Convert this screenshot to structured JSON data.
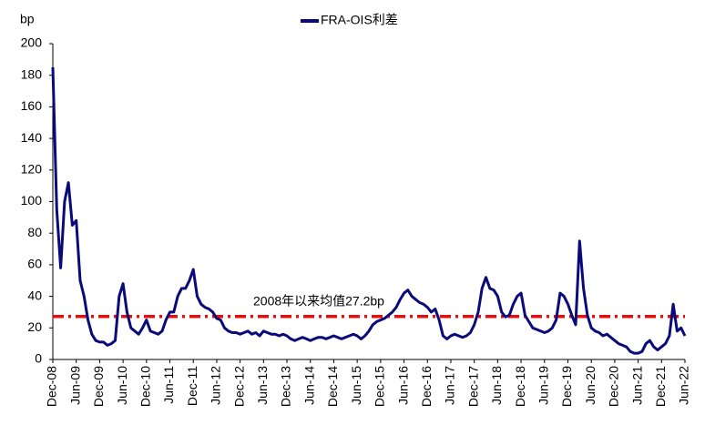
{
  "chart_data": {
    "type": "line",
    "legend": "top",
    "ylabel": "bp",
    "ylim": [
      0,
      200
    ],
    "yticks": [
      0,
      20,
      40,
      60,
      80,
      100,
      120,
      140,
      160,
      180,
      200
    ],
    "xlim": [
      "2008-12",
      "2022-06"
    ],
    "xticks": [
      {
        "value": "2008-12",
        "label": "Dec-08"
      },
      {
        "value": "2009-06",
        "label": "Jun-09"
      },
      {
        "value": "2009-12",
        "label": "Dec-09"
      },
      {
        "value": "2010-06",
        "label": "Jun-10"
      },
      {
        "value": "2010-12",
        "label": "Dec-10"
      },
      {
        "value": "2011-06",
        "label": "Jun-11"
      },
      {
        "value": "2011-12",
        "label": "Dec-11"
      },
      {
        "value": "2012-06",
        "label": "Jun-12"
      },
      {
        "value": "2012-12",
        "label": "Dec-12"
      },
      {
        "value": "2013-06",
        "label": "Jun-13"
      },
      {
        "value": "2013-12",
        "label": "Dec-13"
      },
      {
        "value": "2014-06",
        "label": "Jun-14"
      },
      {
        "value": "2014-12",
        "label": "Dec-14"
      },
      {
        "value": "2015-06",
        "label": "Jun-15"
      },
      {
        "value": "2015-12",
        "label": "Dec-15"
      },
      {
        "value": "2016-06",
        "label": "Jun-16"
      },
      {
        "value": "2016-12",
        "label": "Dec-16"
      },
      {
        "value": "2017-06",
        "label": "Jun-17"
      },
      {
        "value": "2017-12",
        "label": "Dec-17"
      },
      {
        "value": "2018-06",
        "label": "Jun-18"
      },
      {
        "value": "2018-12",
        "label": "Dec-18"
      },
      {
        "value": "2019-06",
        "label": "Jun-19"
      },
      {
        "value": "2019-12",
        "label": "Dec-19"
      },
      {
        "value": "2020-06",
        "label": "Jun-20"
      },
      {
        "value": "2020-12",
        "label": "Dec-20"
      },
      {
        "value": "2021-06",
        "label": "Jun-21"
      },
      {
        "value": "2021-12",
        "label": "Dec-21"
      },
      {
        "value": "2022-06",
        "label": "Jun-22"
      }
    ],
    "x": [
      "2008-12",
      "2009-01",
      "2009-02",
      "2009-03",
      "2009-04",
      "2009-05",
      "2009-06",
      "2009-07",
      "2009-08",
      "2009-09",
      "2009-10",
      "2009-11",
      "2009-12",
      "2010-01",
      "2010-02",
      "2010-03",
      "2010-04",
      "2010-05",
      "2010-06",
      "2010-07",
      "2010-08",
      "2010-09",
      "2010-10",
      "2010-11",
      "2010-12",
      "2011-01",
      "2011-02",
      "2011-03",
      "2011-04",
      "2011-05",
      "2011-06",
      "2011-07",
      "2011-08",
      "2011-09",
      "2011-10",
      "2011-11",
      "2011-12",
      "2012-01",
      "2012-02",
      "2012-03",
      "2012-04",
      "2012-05",
      "2012-06",
      "2012-07",
      "2012-08",
      "2012-09",
      "2012-10",
      "2012-11",
      "2012-12",
      "2013-01",
      "2013-02",
      "2013-03",
      "2013-04",
      "2013-05",
      "2013-06",
      "2013-07",
      "2013-08",
      "2013-09",
      "2013-10",
      "2013-11",
      "2013-12",
      "2014-01",
      "2014-02",
      "2014-03",
      "2014-04",
      "2014-05",
      "2014-06",
      "2014-07",
      "2014-08",
      "2014-09",
      "2014-10",
      "2014-11",
      "2014-12",
      "2015-01",
      "2015-02",
      "2015-03",
      "2015-04",
      "2015-05",
      "2015-06",
      "2015-07",
      "2015-08",
      "2015-09",
      "2015-10",
      "2015-11",
      "2015-12",
      "2016-01",
      "2016-02",
      "2016-03",
      "2016-04",
      "2016-05",
      "2016-06",
      "2016-07",
      "2016-08",
      "2016-09",
      "2016-10",
      "2016-11",
      "2016-12",
      "2017-01",
      "2017-02",
      "2017-03",
      "2017-04",
      "2017-05",
      "2017-06",
      "2017-07",
      "2017-08",
      "2017-09",
      "2017-10",
      "2017-11",
      "2017-12",
      "2018-01",
      "2018-02",
      "2018-03",
      "2018-04",
      "2018-05",
      "2018-06",
      "2018-07",
      "2018-08",
      "2018-09",
      "2018-10",
      "2018-11",
      "2018-12",
      "2019-01",
      "2019-02",
      "2019-03",
      "2019-04",
      "2019-05",
      "2019-06",
      "2019-07",
      "2019-08",
      "2019-09",
      "2019-10",
      "2019-11",
      "2019-12",
      "2020-01",
      "2020-02",
      "2020-03",
      "2020-04",
      "2020-05",
      "2020-06",
      "2020-07",
      "2020-08",
      "2020-09",
      "2020-10",
      "2020-11",
      "2020-12",
      "2021-01",
      "2021-02",
      "2021-03",
      "2021-04",
      "2021-05",
      "2021-06",
      "2021-07",
      "2021-08",
      "2021-09",
      "2021-10",
      "2021-11",
      "2021-12",
      "2022-01",
      "2022-02",
      "2022-03",
      "2022-04",
      "2022-05",
      "2022-06"
    ],
    "series": [
      {
        "name": "FRA-OIS利差",
        "color": "#0a0a7a",
        "values": [
          185,
          95,
          58,
          100,
          112,
          85,
          88,
          50,
          40,
          25,
          16,
          12,
          11,
          11,
          9,
          10,
          12,
          40,
          48,
          30,
          20,
          18,
          16,
          20,
          25,
          18,
          17,
          16,
          18,
          25,
          30,
          30,
          40,
          45,
          45,
          50,
          57,
          40,
          35,
          33,
          32,
          30,
          26,
          25,
          20,
          18,
          17,
          17,
          16,
          17,
          18,
          16,
          17,
          15,
          18,
          17,
          16,
          16,
          15,
          16,
          15,
          13,
          12,
          13,
          14,
          13,
          12,
          13,
          14,
          14,
          13,
          14,
          15,
          14,
          13,
          14,
          15,
          16,
          15,
          13,
          15,
          18,
          22,
          24,
          25,
          26,
          28,
          30,
          33,
          38,
          42,
          44,
          40,
          38,
          36,
          35,
          33,
          30,
          32,
          25,
          15,
          13,
          15,
          16,
          15,
          14,
          15,
          17,
          22,
          30,
          45,
          52,
          45,
          44,
          40,
          30,
          27,
          28,
          35,
          40,
          42,
          28,
          24,
          20,
          19,
          18,
          17,
          18,
          20,
          25,
          42,
          40,
          35,
          28,
          22,
          75,
          45,
          28,
          20,
          18,
          17,
          15,
          16,
          14,
          12,
          10,
          9,
          8,
          5,
          4,
          4,
          5,
          10,
          12,
          8,
          6,
          8,
          10,
          15,
          35,
          18,
          20,
          15
        ]
      }
    ],
    "reference_line": {
      "value": 27.2,
      "label": "2008年以来均值27.2bp",
      "color": "#e01010"
    }
  }
}
